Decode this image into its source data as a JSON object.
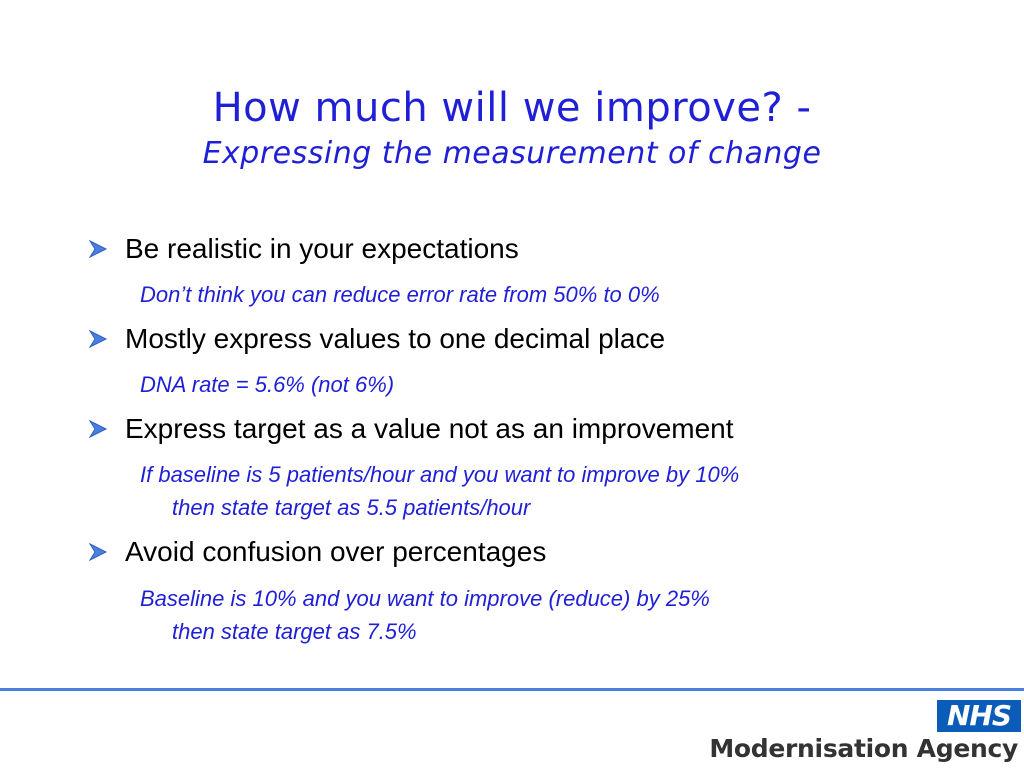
{
  "title": {
    "line1": "How much will we improve? -",
    "line2": "Expressing the measurement of change"
  },
  "colors": {
    "title": "#1f1fd6",
    "bullet_icon": "#4a7fe0",
    "rule": "#4a7fe0",
    "nhs_logo_bg": "#0a5cb8"
  },
  "bullets": [
    {
      "text": "Be realistic in your expectations",
      "sub": [
        "Don’t think you can reduce error rate from 50% to 0%"
      ]
    },
    {
      "text": "Mostly express values to one decimal place",
      "sub": [
        "DNA rate = 5.6% (not 6%)"
      ]
    },
    {
      "text": "Express target as a value not as an improvement",
      "sub": [
        "If baseline is 5 patients/hour and you want to improve by 10%",
        "then state target as 5.5 patients/hour"
      ]
    },
    {
      "text": "Avoid confusion over percentages",
      "sub": [
        "Baseline is 10% and you want to improve (reduce) by 25%",
        "then state target as 7.5%"
      ]
    }
  ],
  "logo": {
    "nhs": "NHS",
    "agency": "Modernisation Agency"
  }
}
